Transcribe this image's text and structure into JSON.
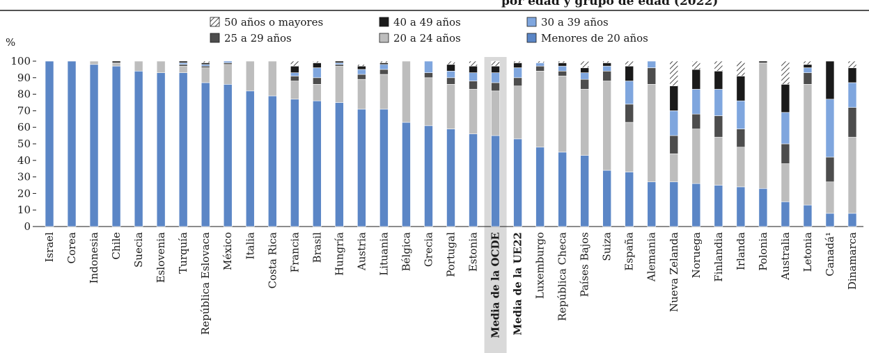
{
  "chart_data": {
    "type": "bar",
    "stacked": true,
    "title_fragment": "por edad y grupo de edad (2022)",
    "ylabel": "%",
    "ylim": [
      0,
      100
    ],
    "yticks": [
      0,
      10,
      20,
      30,
      40,
      50,
      60,
      70,
      80,
      90,
      100
    ],
    "highlight_categories": [
      "Media de la OCDE"
    ],
    "bold_categories": [
      "Media de la OCDE",
      "Media de la UE22"
    ],
    "categories": [
      "Israel",
      "Corea",
      "Indonesia",
      "Chile",
      "Suecia",
      "Eslovenia",
      "Turquía",
      "República Eslovaca",
      "México",
      "Italia",
      "Costa Rica",
      "Francia",
      "Brasil",
      "Hungría",
      "Austria",
      "Lituania",
      "Bélgica",
      "Grecia",
      "Portugal",
      "Estonia",
      "Media de la OCDE",
      "Media de la UE22",
      "Luxemburgo",
      "República Checa",
      "Países Bajos",
      "Suiza",
      "España",
      "Alemania",
      "Nueva Zelanda",
      "Noruega",
      "Finlandia",
      "Irlanda",
      "Polonia",
      "Australia",
      "Letonia",
      "Canadá¹",
      "Dinamarca"
    ],
    "series": [
      {
        "name": "Menores de 20 años",
        "color": "#5b86c6",
        "values": [
          100,
          100,
          98,
          97,
          94,
          93,
          93,
          87,
          86,
          82,
          79,
          77,
          76,
          75,
          71,
          71,
          63,
          61,
          59,
          56,
          55,
          53,
          48,
          45,
          43,
          34,
          33,
          27,
          27,
          26,
          25,
          24,
          23,
          15,
          13,
          8,
          8
        ]
      },
      {
        "name": "20 a 24 años",
        "color": "#bdbdbd",
        "values": [
          0,
          0,
          2,
          2,
          6,
          7,
          4,
          9,
          12,
          18,
          21,
          11,
          10,
          22,
          18,
          21,
          37,
          29,
          27,
          27,
          27,
          32,
          46,
          46,
          40,
          54,
          30,
          59,
          17,
          33,
          29,
          24,
          76,
          23,
          73,
          19,
          46
        ]
      },
      {
        "name": "25 a 29 años",
        "color": "#4d4d4d",
        "values": [
          0,
          0,
          0,
          0,
          0,
          0,
          1,
          1,
          1,
          0,
          0,
          3,
          4,
          1,
          3,
          3,
          0,
          3,
          4,
          5,
          5,
          5,
          3,
          3,
          6,
          6,
          11,
          10,
          11,
          9,
          13,
          11,
          0,
          12,
          7,
          15,
          18
        ]
      },
      {
        "name": "30 a 39 años",
        "color": "#7fa6de",
        "values": [
          0,
          0,
          0,
          0,
          0,
          0,
          1,
          1,
          1,
          0,
          0,
          2,
          6,
          1,
          3,
          3,
          0,
          7,
          4,
          5,
          6,
          6,
          2,
          3,
          4,
          3,
          14,
          4,
          15,
          15,
          16,
          17,
          0,
          19,
          3,
          35,
          15
        ]
      },
      {
        "name": "40 a 49 años",
        "color": "#1a1a1a",
        "values": [
          0,
          0,
          0,
          1,
          0,
          0,
          1,
          1,
          0,
          0,
          0,
          4,
          3,
          1,
          2,
          1,
          0,
          0,
          4,
          4,
          4,
          3,
          0,
          2,
          3,
          2,
          9,
          0,
          15,
          12,
          11,
          15,
          1,
          17,
          2,
          23,
          9
        ]
      },
      {
        "name": "50 años o mayores",
        "color": "#ffffff",
        "pattern": "hatch",
        "values": [
          0,
          0,
          0,
          0,
          0,
          0,
          0,
          1,
          0,
          0,
          0,
          3,
          1,
          0,
          1,
          1,
          0,
          0,
          2,
          3,
          3,
          1,
          1,
          1,
          4,
          1,
          3,
          0,
          15,
          5,
          6,
          9,
          0,
          14,
          2,
          0,
          4
        ]
      }
    ],
    "legend": {
      "rows": [
        [
          "50 años o mayores",
          "40 a 49 años",
          "30 a 39 años"
        ],
        [
          "25 a 29 años",
          "20 a 24 años",
          "Menores de 20 años"
        ]
      ]
    }
  }
}
